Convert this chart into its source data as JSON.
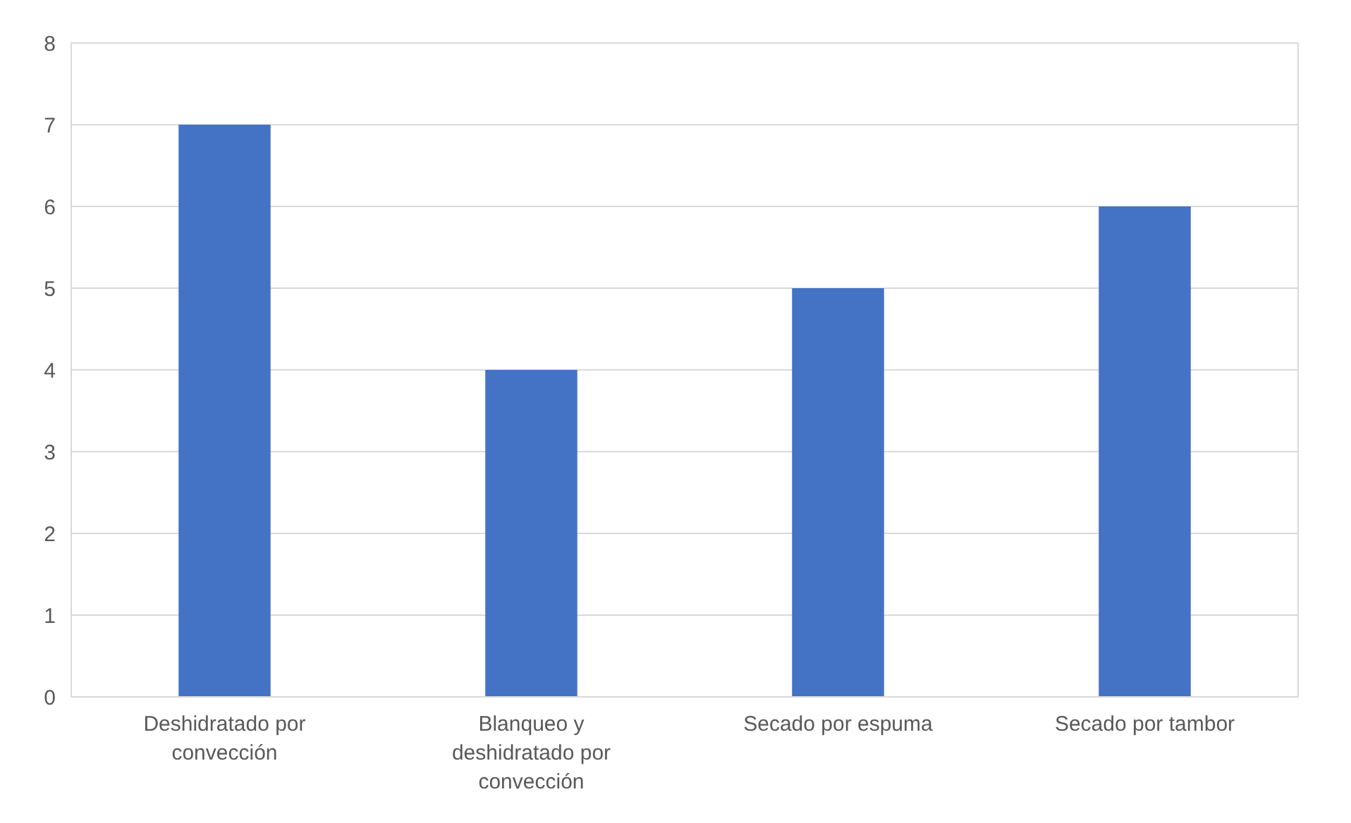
{
  "chart_data": {
    "type": "bar",
    "categories": [
      "Deshidratado por convección",
      "Blanqueo y deshidratado por convección",
      "Secado por espuma",
      "Secado por tambor"
    ],
    "values": [
      7,
      4,
      5,
      6
    ],
    "color": "#4472c4",
    "ylim": [
      0,
      8
    ],
    "yticks": [
      0,
      1,
      2,
      3,
      4,
      5,
      6,
      7,
      8
    ],
    "grid": "y"
  }
}
